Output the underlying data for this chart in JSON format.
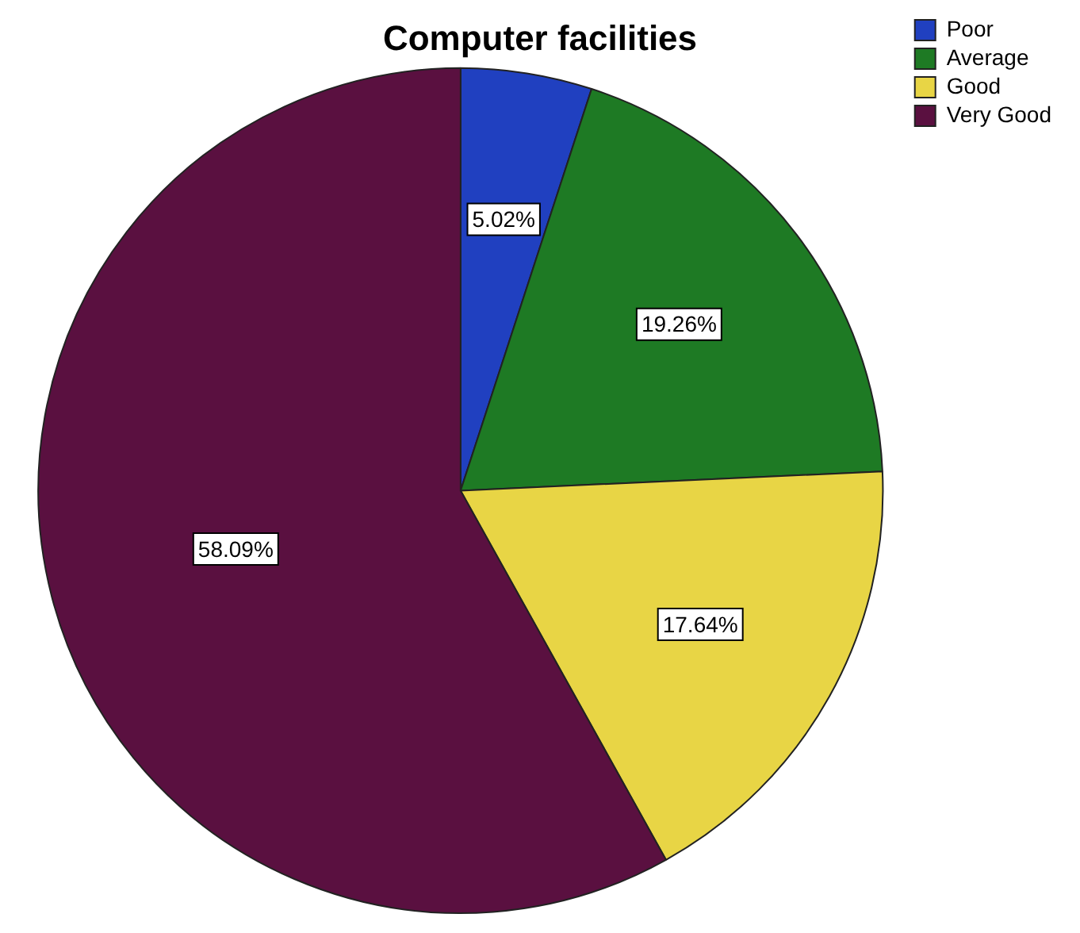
{
  "chart_data": {
    "type": "pie",
    "title": "Computer facilities",
    "categories": [
      "Poor",
      "Average",
      "Good",
      "Very Good"
    ],
    "values": [
      5.02,
      19.26,
      17.64,
      58.09
    ],
    "colors": [
      "#2040c0",
      "#1e7a24",
      "#e8d545",
      "#5a1040"
    ],
    "value_labels": [
      "5.02%",
      "19.26%",
      "17.64%",
      "58.09%"
    ],
    "legend": "top right"
  }
}
